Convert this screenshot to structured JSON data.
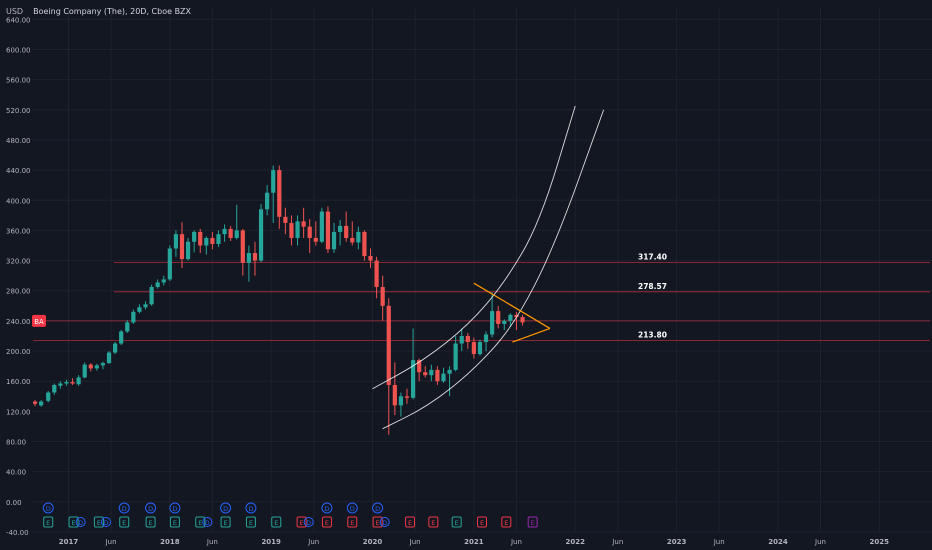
{
  "header": {
    "currency": "USD",
    "title": "Boeing Company (The), 20D, Cboe BZX"
  },
  "colors": {
    "background": "#131722",
    "grid": "#1e222d",
    "axis_text": "#b2b5be",
    "up": "#26a69a",
    "down": "#ef5350",
    "hline": "#f23645",
    "wedge": "#ff9800",
    "curve": "#ffffff",
    "dividend_marker": "#2962ff",
    "earnings_up": "#26a69a",
    "earnings_down": "#f23645",
    "earnings_future": "#9c27b0"
  },
  "chart_data": {
    "type": "candlestick",
    "symbol": "BA",
    "interval": "20D",
    "ylim": [
      -40,
      655
    ],
    "y_ticks": [
      "640.00",
      "600.00",
      "560.00",
      "520.00",
      "480.00",
      "440.00",
      "400.00",
      "360.00",
      "320.00",
      "280.00",
      "240.00",
      "200.00",
      "160.00",
      "120.00",
      "80.00",
      "40.00",
      "0.00",
      "-40.00"
    ],
    "x_ticks": [
      {
        "label": "2017",
        "t": 2017.0
      },
      {
        "label": "Jun",
        "t": 2017.42
      },
      {
        "label": "2018",
        "t": 2018.0
      },
      {
        "label": "Jun",
        "t": 2018.42
      },
      {
        "label": "2019",
        "t": 2019.0
      },
      {
        "label": "Jun",
        "t": 2019.42
      },
      {
        "label": "2020",
        "t": 2020.0
      },
      {
        "label": "Jun",
        "t": 2020.42
      },
      {
        "label": "2021",
        "t": 2021.0
      },
      {
        "label": "Jun",
        "t": 2021.42
      },
      {
        "label": "2022",
        "t": 2022.0
      },
      {
        "label": "Jun",
        "t": 2022.42
      },
      {
        "label": "2023",
        "t": 2023.0
      },
      {
        "label": "Jun",
        "t": 2023.42
      },
      {
        "label": "2024",
        "t": 2024.0
      },
      {
        "label": "Jun",
        "t": 2024.42
      },
      {
        "label": "2025",
        "t": 2025.0
      }
    ],
    "candles": [
      {
        "t": 2016.67,
        "o": 133,
        "h": 135,
        "l": 127,
        "c": 130
      },
      {
        "t": 2016.73,
        "o": 128,
        "h": 135,
        "l": 126,
        "c": 133
      },
      {
        "t": 2016.8,
        "o": 134,
        "h": 147,
        "l": 132,
        "c": 145
      },
      {
        "t": 2016.86,
        "o": 145,
        "h": 157,
        "l": 142,
        "c": 155
      },
      {
        "t": 2016.92,
        "o": 154,
        "h": 160,
        "l": 150,
        "c": 157
      },
      {
        "t": 2016.98,
        "o": 157,
        "h": 162,
        "l": 154,
        "c": 159
      },
      {
        "t": 2017.04,
        "o": 159,
        "h": 164,
        "l": 155,
        "c": 157
      },
      {
        "t": 2017.1,
        "o": 156,
        "h": 168,
        "l": 154,
        "c": 165
      },
      {
        "t": 2017.16,
        "o": 165,
        "h": 185,
        "l": 164,
        "c": 182
      },
      {
        "t": 2017.22,
        "o": 182,
        "h": 184,
        "l": 173,
        "c": 177
      },
      {
        "t": 2017.28,
        "o": 177,
        "h": 183,
        "l": 174,
        "c": 181
      },
      {
        "t": 2017.34,
        "o": 181,
        "h": 186,
        "l": 176,
        "c": 184
      },
      {
        "t": 2017.4,
        "o": 184,
        "h": 200,
        "l": 183,
        "c": 198
      },
      {
        "t": 2017.46,
        "o": 198,
        "h": 212,
        "l": 196,
        "c": 210
      },
      {
        "t": 2017.52,
        "o": 210,
        "h": 228,
        "l": 208,
        "c": 226
      },
      {
        "t": 2017.58,
        "o": 226,
        "h": 241,
        "l": 224,
        "c": 238
      },
      {
        "t": 2017.64,
        "o": 238,
        "h": 255,
        "l": 236,
        "c": 252
      },
      {
        "t": 2017.7,
        "o": 252,
        "h": 262,
        "l": 250,
        "c": 258
      },
      {
        "t": 2017.76,
        "o": 258,
        "h": 266,
        "l": 255,
        "c": 262
      },
      {
        "t": 2017.82,
        "o": 262,
        "h": 288,
        "l": 260,
        "c": 285
      },
      {
        "t": 2017.88,
        "o": 285,
        "h": 295,
        "l": 283,
        "c": 291
      },
      {
        "t": 2017.94,
        "o": 291,
        "h": 300,
        "l": 287,
        "c": 295
      },
      {
        "t": 2018.0,
        "o": 295,
        "h": 340,
        "l": 293,
        "c": 336
      },
      {
        "t": 2018.06,
        "o": 336,
        "h": 360,
        "l": 325,
        "c": 355
      },
      {
        "t": 2018.12,
        "o": 355,
        "h": 371,
        "l": 310,
        "c": 322
      },
      {
        "t": 2018.18,
        "o": 322,
        "h": 350,
        "l": 320,
        "c": 345
      },
      {
        "t": 2018.24,
        "o": 345,
        "h": 360,
        "l": 331,
        "c": 358
      },
      {
        "t": 2018.3,
        "o": 358,
        "h": 362,
        "l": 330,
        "c": 340
      },
      {
        "t": 2018.36,
        "o": 340,
        "h": 352,
        "l": 328,
        "c": 350
      },
      {
        "t": 2018.42,
        "o": 350,
        "h": 358,
        "l": 335,
        "c": 342
      },
      {
        "t": 2018.48,
        "o": 342,
        "h": 360,
        "l": 338,
        "c": 355
      },
      {
        "t": 2018.54,
        "o": 355,
        "h": 368,
        "l": 345,
        "c": 362
      },
      {
        "t": 2018.6,
        "o": 362,
        "h": 366,
        "l": 346,
        "c": 350
      },
      {
        "t": 2018.66,
        "o": 350,
        "h": 394,
        "l": 348,
        "c": 360
      },
      {
        "t": 2018.72,
        "o": 360,
        "h": 362,
        "l": 300,
        "c": 317
      },
      {
        "t": 2018.78,
        "o": 317,
        "h": 340,
        "l": 292,
        "c": 330
      },
      {
        "t": 2018.84,
        "o": 330,
        "h": 345,
        "l": 300,
        "c": 320
      },
      {
        "t": 2018.9,
        "o": 320,
        "h": 395,
        "l": 318,
        "c": 388
      },
      {
        "t": 2018.96,
        "o": 388,
        "h": 420,
        "l": 380,
        "c": 410
      },
      {
        "t": 2019.02,
        "o": 410,
        "h": 446,
        "l": 370,
        "c": 440
      },
      {
        "t": 2019.08,
        "o": 440,
        "h": 446,
        "l": 362,
        "c": 378
      },
      {
        "t": 2019.14,
        "o": 378,
        "h": 390,
        "l": 355,
        "c": 370
      },
      {
        "t": 2019.2,
        "o": 370,
        "h": 380,
        "l": 340,
        "c": 350
      },
      {
        "t": 2019.26,
        "o": 350,
        "h": 380,
        "l": 340,
        "c": 372
      },
      {
        "t": 2019.32,
        "o": 372,
        "h": 390,
        "l": 350,
        "c": 365
      },
      {
        "t": 2019.38,
        "o": 365,
        "h": 375,
        "l": 330,
        "c": 350
      },
      {
        "t": 2019.44,
        "o": 350,
        "h": 372,
        "l": 340,
        "c": 345
      },
      {
        "t": 2019.5,
        "o": 345,
        "h": 390,
        "l": 343,
        "c": 385
      },
      {
        "t": 2019.56,
        "o": 385,
        "h": 392,
        "l": 330,
        "c": 335
      },
      {
        "t": 2019.62,
        "o": 335,
        "h": 370,
        "l": 330,
        "c": 358
      },
      {
        "t": 2019.68,
        "o": 358,
        "h": 374,
        "l": 340,
        "c": 366
      },
      {
        "t": 2019.74,
        "o": 366,
        "h": 385,
        "l": 345,
        "c": 350
      },
      {
        "t": 2019.8,
        "o": 350,
        "h": 372,
        "l": 340,
        "c": 344
      },
      {
        "t": 2019.86,
        "o": 344,
        "h": 365,
        "l": 335,
        "c": 358
      },
      {
        "t": 2019.92,
        "o": 358,
        "h": 360,
        "l": 320,
        "c": 326
      },
      {
        "t": 2019.98,
        "o": 326,
        "h": 336,
        "l": 310,
        "c": 320
      },
      {
        "t": 2020.04,
        "o": 320,
        "h": 325,
        "l": 270,
        "c": 285
      },
      {
        "t": 2020.1,
        "o": 285,
        "h": 300,
        "l": 240,
        "c": 260
      },
      {
        "t": 2020.16,
        "o": 260,
        "h": 270,
        "l": 89,
        "c": 155
      },
      {
        "t": 2020.22,
        "o": 155,
        "h": 185,
        "l": 115,
        "c": 128
      },
      {
        "t": 2020.28,
        "o": 128,
        "h": 145,
        "l": 113,
        "c": 140
      },
      {
        "t": 2020.34,
        "o": 140,
        "h": 150,
        "l": 130,
        "c": 138
      },
      {
        "t": 2020.4,
        "o": 138,
        "h": 230,
        "l": 136,
        "c": 188
      },
      {
        "t": 2020.46,
        "o": 188,
        "h": 190,
        "l": 160,
        "c": 172
      },
      {
        "t": 2020.52,
        "o": 172,
        "h": 180,
        "l": 165,
        "c": 168
      },
      {
        "t": 2020.58,
        "o": 168,
        "h": 182,
        "l": 160,
        "c": 175
      },
      {
        "t": 2020.64,
        "o": 175,
        "h": 180,
        "l": 155,
        "c": 160
      },
      {
        "t": 2020.7,
        "o": 160,
        "h": 178,
        "l": 158,
        "c": 170
      },
      {
        "t": 2020.76,
        "o": 170,
        "h": 180,
        "l": 140,
        "c": 175
      },
      {
        "t": 2020.82,
        "o": 175,
        "h": 220,
        "l": 173,
        "c": 210
      },
      {
        "t": 2020.88,
        "o": 210,
        "h": 230,
        "l": 200,
        "c": 220
      },
      {
        "t": 2020.94,
        "o": 220,
        "h": 224,
        "l": 203,
        "c": 212
      },
      {
        "t": 2021.0,
        "o": 212,
        "h": 218,
        "l": 190,
        "c": 196
      },
      {
        "t": 2021.06,
        "o": 196,
        "h": 215,
        "l": 194,
        "c": 212
      },
      {
        "t": 2021.12,
        "o": 212,
        "h": 226,
        "l": 200,
        "c": 222
      },
      {
        "t": 2021.18,
        "o": 222,
        "h": 278,
        "l": 218,
        "c": 253
      },
      {
        "t": 2021.24,
        "o": 253,
        "h": 260,
        "l": 230,
        "c": 236
      },
      {
        "t": 2021.3,
        "o": 236,
        "h": 242,
        "l": 228,
        "c": 240
      },
      {
        "t": 2021.36,
        "o": 240,
        "h": 250,
        "l": 232,
        "c": 248
      },
      {
        "t": 2021.42,
        "o": 248,
        "h": 252,
        "l": 228,
        "c": 245
      },
      {
        "t": 2021.48,
        "o": 245,
        "h": 248,
        "l": 234,
        "c": 238
      }
    ],
    "price_label": {
      "text": "BA",
      "value": 240
    },
    "horizontal_lines": [
      {
        "value": 317.4,
        "label": "317.40",
        "t_start": 2017.45,
        "t_end": 2025.5
      },
      {
        "value": 278.57,
        "label": "278.57",
        "t_start": 2017.45,
        "t_end": 2025.5
      },
      {
        "value": 240.0,
        "label": "",
        "t_start": 2016.65,
        "t_end": 2025.5
      },
      {
        "value": 213.8,
        "label": "213.80",
        "t_start": 2016.65,
        "t_end": 2025.5
      }
    ],
    "wedge_lines": [
      {
        "t1": 2021.0,
        "v1": 290,
        "t2": 2021.75,
        "v2": 230
      },
      {
        "t1": 2021.38,
        "v1": 212,
        "t2": 2021.75,
        "v2": 230
      }
    ],
    "parabolic_curves": [
      {
        "points": [
          [
            2020.0,
            150
          ],
          [
            2020.5,
            187
          ],
          [
            2020.95,
            235
          ],
          [
            2021.3,
            290
          ],
          [
            2021.65,
            370
          ],
          [
            2022.0,
            525
          ]
        ]
      },
      {
        "points": [
          [
            2020.1,
            97
          ],
          [
            2020.55,
            127
          ],
          [
            2021.0,
            175
          ],
          [
            2021.4,
            235
          ],
          [
            2021.8,
            340
          ],
          [
            2022.28,
            520
          ]
        ]
      }
    ],
    "dividend_markers": [
      {
        "t": 2016.8,
        "label": "D"
      },
      {
        "t": 2017.55,
        "label": "D"
      },
      {
        "t": 2017.81,
        "label": "D"
      },
      {
        "t": 2018.05,
        "label": "D"
      },
      {
        "t": 2018.55,
        "label": "D"
      },
      {
        "t": 2018.8,
        "label": "D"
      },
      {
        "t": 2019.55,
        "label": "D"
      },
      {
        "t": 2019.8,
        "label": "D"
      },
      {
        "t": 2020.05,
        "label": "D"
      }
    ],
    "earnings_markers": [
      {
        "t": 2016.8,
        "label": "E",
        "kind": "up"
      },
      {
        "t": 2017.05,
        "label": "E",
        "kind": "up"
      },
      {
        "t": 2017.12,
        "label": "D",
        "kind": "div"
      },
      {
        "t": 2017.3,
        "label": "E",
        "kind": "up"
      },
      {
        "t": 2017.37,
        "label": "D",
        "kind": "div"
      },
      {
        "t": 2017.55,
        "label": "E",
        "kind": "up"
      },
      {
        "t": 2017.81,
        "label": "E",
        "kind": "up"
      },
      {
        "t": 2018.05,
        "label": "E",
        "kind": "up"
      },
      {
        "t": 2018.3,
        "label": "E",
        "kind": "up"
      },
      {
        "t": 2018.37,
        "label": "D",
        "kind": "div"
      },
      {
        "t": 2018.55,
        "label": "E",
        "kind": "up"
      },
      {
        "t": 2018.8,
        "label": "E",
        "kind": "up"
      },
      {
        "t": 2019.05,
        "label": "E",
        "kind": "up"
      },
      {
        "t": 2019.3,
        "label": "E",
        "kind": "down"
      },
      {
        "t": 2019.37,
        "label": "D",
        "kind": "div"
      },
      {
        "t": 2019.55,
        "label": "E",
        "kind": "down"
      },
      {
        "t": 2019.8,
        "label": "E",
        "kind": "down"
      },
      {
        "t": 2020.05,
        "label": "E",
        "kind": "down"
      },
      {
        "t": 2020.12,
        "label": "D",
        "kind": "div"
      },
      {
        "t": 2020.37,
        "label": "E",
        "kind": "down"
      },
      {
        "t": 2020.6,
        "label": "E",
        "kind": "down"
      },
      {
        "t": 2020.83,
        "label": "E",
        "kind": "up"
      },
      {
        "t": 2021.08,
        "label": "E",
        "kind": "down"
      },
      {
        "t": 2021.32,
        "label": "E",
        "kind": "down"
      },
      {
        "t": 2021.58,
        "label": "E",
        "kind": "future"
      }
    ]
  }
}
